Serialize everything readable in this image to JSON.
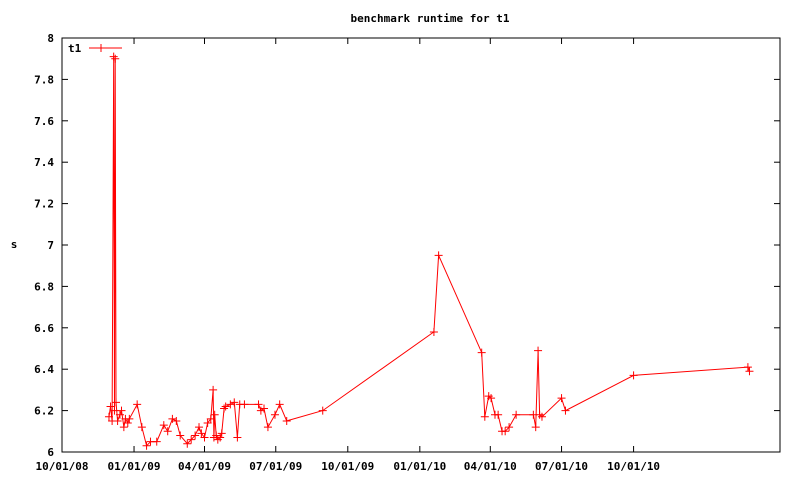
{
  "chart_data": {
    "type": "line",
    "title": "benchmark runtime for t1",
    "xlabel": "",
    "ylabel": "s",
    "xlim": [
      "2008-10-01",
      "2011-04-06"
    ],
    "ylim": [
      6,
      8
    ],
    "xticks": [
      {
        "date": "2008-10-01",
        "label": "10/01/08"
      },
      {
        "date": "2009-01-01",
        "label": "01/01/09"
      },
      {
        "date": "2009-04-01",
        "label": "04/01/09"
      },
      {
        "date": "2009-07-01",
        "label": "07/01/09"
      },
      {
        "date": "2009-10-01",
        "label": "10/01/09"
      },
      {
        "date": "2010-01-01",
        "label": "01/01/10"
      },
      {
        "date": "2010-04-01",
        "label": "04/01/10"
      },
      {
        "date": "2010-07-01",
        "label": "07/01/10"
      },
      {
        "date": "2010-10-01",
        "label": "10/01/10"
      }
    ],
    "yticks": [
      {
        "v": 6,
        "label": "6"
      },
      {
        "v": 6.2,
        "label": "6.2"
      },
      {
        "v": 6.4,
        "label": "6.4"
      },
      {
        "v": 6.6,
        "label": "6.6"
      },
      {
        "v": 6.8,
        "label": "6.8"
      },
      {
        "v": 7,
        "label": "7"
      },
      {
        "v": 7.2,
        "label": "7.2"
      },
      {
        "v": 7.4,
        "label": "7.4"
      },
      {
        "v": 7.6,
        "label": "7.6"
      },
      {
        "v": 7.8,
        "label": "7.8"
      },
      {
        "v": 8,
        "label": "8"
      }
    ],
    "legend": "top-left",
    "grid": false,
    "series": [
      {
        "name": "t1",
        "color": "#ff0000",
        "marker": "plus",
        "points": [
          [
            "2008-11-30",
            6.17
          ],
          [
            "2008-12-02",
            6.22
          ],
          [
            "2008-12-04",
            6.15
          ],
          [
            "2008-12-06",
            7.91
          ],
          [
            "2008-12-07",
            6.2
          ],
          [
            "2008-12-08",
            7.9
          ],
          [
            "2008-12-09",
            6.24
          ],
          [
            "2008-12-11",
            6.15
          ],
          [
            "2008-12-14",
            6.18
          ],
          [
            "2008-12-16",
            6.2
          ],
          [
            "2008-12-19",
            6.12
          ],
          [
            "2008-12-21",
            6.16
          ],
          [
            "2008-12-24",
            6.14
          ],
          [
            "2008-12-26",
            6.16
          ],
          [
            "2009-01-05",
            6.23
          ],
          [
            "2009-01-11",
            6.12
          ],
          [
            "2009-01-17",
            6.03
          ],
          [
            "2009-01-22",
            6.05
          ],
          [
            "2009-01-30",
            6.05
          ],
          [
            "2009-02-08",
            6.13
          ],
          [
            "2009-02-13",
            6.1
          ],
          [
            "2009-02-19",
            6.16
          ],
          [
            "2009-02-24",
            6.15
          ],
          [
            "2009-03-01",
            6.08
          ],
          [
            "2009-03-10",
            6.04
          ],
          [
            "2009-03-15",
            6.06
          ],
          [
            "2009-03-20",
            6.08
          ],
          [
            "2009-03-25",
            6.12
          ],
          [
            "2009-03-28",
            6.09
          ],
          [
            "2009-04-01",
            6.07
          ],
          [
            "2009-04-05",
            6.14
          ],
          [
            "2009-04-09",
            6.16
          ],
          [
            "2009-04-12",
            6.3
          ],
          [
            "2009-04-13",
            6.07
          ],
          [
            "2009-04-14",
            6.18
          ],
          [
            "2009-04-16",
            6.08
          ],
          [
            "2009-04-18",
            6.06
          ],
          [
            "2009-04-21",
            6.07
          ],
          [
            "2009-04-23",
            6.09
          ],
          [
            "2009-04-26",
            6.21
          ],
          [
            "2009-04-28",
            6.22
          ],
          [
            "2009-05-04",
            6.23
          ],
          [
            "2009-05-09",
            6.24
          ],
          [
            "2009-05-13",
            6.07
          ],
          [
            "2009-05-16",
            6.23
          ],
          [
            "2009-05-22",
            6.23
          ],
          [
            "2009-06-09",
            6.23
          ],
          [
            "2009-06-12",
            6.2
          ],
          [
            "2009-06-16",
            6.21
          ],
          [
            "2009-06-21",
            6.12
          ],
          [
            "2009-06-30",
            6.18
          ],
          [
            "2009-07-06",
            6.23
          ],
          [
            "2009-07-15",
            6.15
          ],
          [
            "2009-08-30",
            6.2
          ],
          [
            "2010-01-19",
            6.58
          ],
          [
            "2010-01-25",
            6.95
          ],
          [
            "2010-03-21",
            6.48
          ],
          [
            "2010-03-25",
            6.17
          ],
          [
            "2010-03-30",
            6.27
          ],
          [
            "2010-04-02",
            6.26
          ],
          [
            "2010-04-07",
            6.18
          ],
          [
            "2010-04-11",
            6.18
          ],
          [
            "2010-04-16",
            6.1
          ],
          [
            "2010-04-20",
            6.1
          ],
          [
            "2010-04-25",
            6.12
          ],
          [
            "2010-05-04",
            6.18
          ],
          [
            "2010-05-26",
            6.18
          ],
          [
            "2010-05-29",
            6.12
          ],
          [
            "2010-06-01",
            6.49
          ],
          [
            "2010-06-03",
            6.18
          ],
          [
            "2010-06-06",
            6.17
          ],
          [
            "2010-07-01",
            6.26
          ],
          [
            "2010-07-06",
            6.2
          ],
          [
            "2010-10-01",
            6.37
          ],
          [
            "2011-02-24",
            6.41
          ],
          [
            "2011-02-26",
            6.39
          ]
        ]
      }
    ]
  }
}
